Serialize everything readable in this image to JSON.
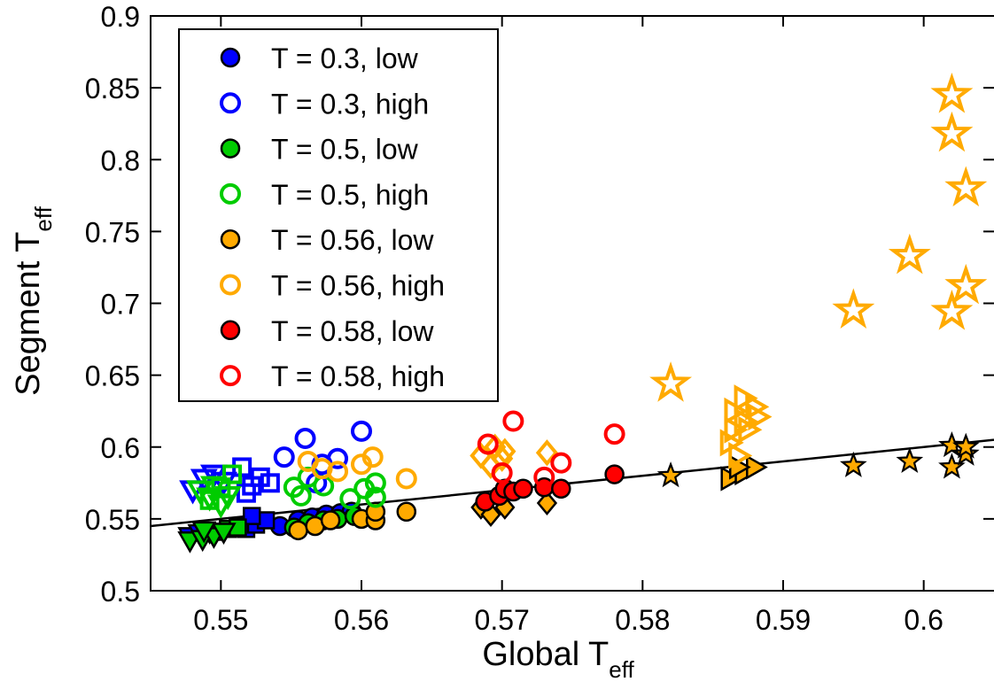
{
  "chart_data": {
    "type": "scatter",
    "xlabel": "Global T",
    "xlabel_sub": "eff",
    "ylabel": "Segment T",
    "ylabel_sub": "eff",
    "xlim": [
      0.545,
      0.605
    ],
    "ylim": [
      0.5,
      0.9
    ],
    "x_ticks": [
      0.55,
      0.56,
      0.57,
      0.58,
      0.59,
      0.6
    ],
    "x_tick_labels": [
      "0.55",
      "0.56",
      "0.57",
      "0.58",
      "0.59",
      "0.6"
    ],
    "y_ticks": [
      0.5,
      0.55,
      0.6,
      0.65,
      0.7,
      0.75,
      0.8,
      0.85,
      0.9
    ],
    "y_tick_labels": [
      "0.5",
      "0.55",
      "0.6",
      "0.65",
      "0.7",
      "0.75",
      "0.8",
      "0.85",
      "0.9"
    ],
    "grid": false,
    "legend_position": "top-left",
    "colors": {
      "T0.3": "#0000ff",
      "T0.5": "#00cc00",
      "T0.56": "#ffaa00",
      "T0.58": "#ff0000",
      "fit_line": "#000000"
    },
    "fit_line": {
      "x": [
        0.545,
        0.605
      ],
      "y": [
        0.545,
        0.605
      ]
    },
    "legend": [
      {
        "label": "T = 0.3, low",
        "color": "#0000ff",
        "filled": true
      },
      {
        "label": "T = 0.3, high",
        "color": "#0000ff",
        "filled": false
      },
      {
        "label": "T = 0.5, low",
        "color": "#00cc00",
        "filled": true
      },
      {
        "label": "T = 0.5, high",
        "color": "#00cc00",
        "filled": false
      },
      {
        "label": "T = 0.56, low",
        "color": "#ffaa00",
        "filled": true
      },
      {
        "label": "T = 0.56, high",
        "color": "#ffaa00",
        "filled": false
      },
      {
        "label": "T = 0.58, low",
        "color": "#ff0000",
        "filled": true
      },
      {
        "label": "T = 0.58, high",
        "color": "#ff0000",
        "filled": false
      }
    ],
    "series": [
      {
        "name": "T = 0.3, low",
        "color": "#0000ff",
        "filled": true,
        "points": [
          {
            "x": 0.5542,
            "y": 0.545,
            "m": "circle"
          },
          {
            "x": 0.5555,
            "y": 0.549,
            "m": "circle"
          },
          {
            "x": 0.5565,
            "y": 0.551,
            "m": "circle"
          },
          {
            "x": 0.5575,
            "y": 0.553,
            "m": "circle"
          },
          {
            "x": 0.5585,
            "y": 0.554,
            "m": "circle"
          },
          {
            "x": 0.5593,
            "y": 0.555,
            "m": "circle"
          },
          {
            "x": 0.5518,
            "y": 0.543,
            "m": "square"
          },
          {
            "x": 0.5525,
            "y": 0.546,
            "m": "square"
          },
          {
            "x": 0.5532,
            "y": 0.549,
            "m": "square"
          },
          {
            "x": 0.5512,
            "y": 0.545,
            "m": "square"
          },
          {
            "x": 0.5522,
            "y": 0.552,
            "m": "square"
          },
          {
            "x": 0.5478,
            "y": 0.538,
            "m": "tri-down"
          },
          {
            "x": 0.5485,
            "y": 0.54,
            "m": "tri-down"
          },
          {
            "x": 0.5492,
            "y": 0.541,
            "m": "tri-down"
          }
        ]
      },
      {
        "name": "T = 0.3, high",
        "color": "#0000ff",
        "filled": false,
        "points": [
          {
            "x": 0.5545,
            "y": 0.593,
            "m": "circle"
          },
          {
            "x": 0.556,
            "y": 0.606,
            "m": "circle"
          },
          {
            "x": 0.5572,
            "y": 0.588,
            "m": "circle"
          },
          {
            "x": 0.5583,
            "y": 0.592,
            "m": "circle"
          },
          {
            "x": 0.56,
            "y": 0.611,
            "m": "circle"
          },
          {
            "x": 0.5568,
            "y": 0.575,
            "m": "circle"
          },
          {
            "x": 0.5522,
            "y": 0.573,
            "m": "square"
          },
          {
            "x": 0.5515,
            "y": 0.586,
            "m": "square"
          },
          {
            "x": 0.5528,
            "y": 0.579,
            "m": "square"
          },
          {
            "x": 0.5535,
            "y": 0.575,
            "m": "square"
          },
          {
            "x": 0.5518,
            "y": 0.568,
            "m": "square"
          },
          {
            "x": 0.548,
            "y": 0.57,
            "m": "tri-down"
          },
          {
            "x": 0.5488,
            "y": 0.578,
            "m": "tri-down"
          },
          {
            "x": 0.5495,
            "y": 0.581,
            "m": "tri-down"
          },
          {
            "x": 0.5502,
            "y": 0.576,
            "m": "tri-down"
          }
        ]
      },
      {
        "name": "T = 0.5, low",
        "color": "#00cc00",
        "filled": true,
        "points": [
          {
            "x": 0.5552,
            "y": 0.544,
            "m": "circle"
          },
          {
            "x": 0.5562,
            "y": 0.547,
            "m": "circle"
          },
          {
            "x": 0.5573,
            "y": 0.549,
            "m": "circle"
          },
          {
            "x": 0.5583,
            "y": 0.55,
            "m": "circle"
          },
          {
            "x": 0.5595,
            "y": 0.552,
            "m": "circle"
          },
          {
            "x": 0.5495,
            "y": 0.541,
            "m": "square"
          },
          {
            "x": 0.5505,
            "y": 0.543,
            "m": "square"
          },
          {
            "x": 0.5512,
            "y": 0.544,
            "m": "square"
          },
          {
            "x": 0.5478,
            "y": 0.535,
            "m": "tri-down"
          },
          {
            "x": 0.5487,
            "y": 0.536,
            "m": "tri-down"
          },
          {
            "x": 0.5495,
            "y": 0.538,
            "m": "tri-down"
          },
          {
            "x": 0.5502,
            "y": 0.541,
            "m": "tri-down"
          },
          {
            "x": 0.5488,
            "y": 0.542,
            "m": "tri-down"
          }
        ]
      },
      {
        "name": "T = 0.5, high",
        "color": "#00cc00",
        "filled": false,
        "points": [
          {
            "x": 0.5552,
            "y": 0.572,
            "m": "circle"
          },
          {
            "x": 0.5562,
            "y": 0.579,
            "m": "circle"
          },
          {
            "x": 0.5557,
            "y": 0.566,
            "m": "circle"
          },
          {
            "x": 0.5573,
            "y": 0.573,
            "m": "circle"
          },
          {
            "x": 0.5592,
            "y": 0.564,
            "m": "circle"
          },
          {
            "x": 0.5602,
            "y": 0.571,
            "m": "circle"
          },
          {
            "x": 0.561,
            "y": 0.575,
            "m": "circle"
          },
          {
            "x": 0.561,
            "y": 0.565,
            "m": "circle"
          },
          {
            "x": 0.5508,
            "y": 0.581,
            "m": "square"
          },
          {
            "x": 0.55,
            "y": 0.572,
            "m": "square"
          },
          {
            "x": 0.5492,
            "y": 0.563,
            "m": "square"
          },
          {
            "x": 0.5485,
            "y": 0.57,
            "m": "tri-down"
          },
          {
            "x": 0.5492,
            "y": 0.565,
            "m": "tri-down"
          },
          {
            "x": 0.55,
            "y": 0.56,
            "m": "tri-down"
          },
          {
            "x": 0.5495,
            "y": 0.573,
            "m": "tri-down"
          },
          {
            "x": 0.5505,
            "y": 0.566,
            "m": "tri-down"
          }
        ]
      },
      {
        "name": "T = 0.56, low",
        "color": "#ffaa00",
        "filled": true,
        "points": [
          {
            "x": 0.5555,
            "y": 0.542,
            "m": "circle"
          },
          {
            "x": 0.5567,
            "y": 0.545,
            "m": "circle"
          },
          {
            "x": 0.5578,
            "y": 0.549,
            "m": "circle"
          },
          {
            "x": 0.56,
            "y": 0.55,
            "m": "circle"
          },
          {
            "x": 0.561,
            "y": 0.549,
            "m": "circle"
          },
          {
            "x": 0.561,
            "y": 0.555,
            "m": "circle"
          },
          {
            "x": 0.5632,
            "y": 0.555,
            "m": "circle"
          },
          {
            "x": 0.5685,
            "y": 0.558,
            "m": "diamond"
          },
          {
            "x": 0.5692,
            "y": 0.553,
            "m": "diamond"
          },
          {
            "x": 0.5702,
            "y": 0.558,
            "m": "diamond"
          },
          {
            "x": 0.5732,
            "y": 0.561,
            "m": "diamond"
          },
          {
            "x": 0.5862,
            "y": 0.578,
            "m": "tri-right"
          },
          {
            "x": 0.5872,
            "y": 0.582,
            "m": "tri-right"
          },
          {
            "x": 0.588,
            "y": 0.586,
            "m": "tri-right"
          },
          {
            "x": 0.5868,
            "y": 0.586,
            "m": "tri-right"
          },
          {
            "x": 0.582,
            "y": 0.58,
            "m": "star"
          },
          {
            "x": 0.595,
            "y": 0.587,
            "m": "star"
          },
          {
            "x": 0.599,
            "y": 0.59,
            "m": "star"
          },
          {
            "x": 0.602,
            "y": 0.586,
            "m": "star"
          },
          {
            "x": 0.602,
            "y": 0.601,
            "m": "star"
          },
          {
            "x": 0.603,
            "y": 0.595,
            "m": "star"
          },
          {
            "x": 0.603,
            "y": 0.6,
            "m": "star"
          }
        ]
      },
      {
        "name": "T = 0.56, high",
        "color": "#ffaa00",
        "filled": false,
        "points": [
          {
            "x": 0.5562,
            "y": 0.59,
            "m": "circle"
          },
          {
            "x": 0.5572,
            "y": 0.585,
            "m": "circle"
          },
          {
            "x": 0.5583,
            "y": 0.583,
            "m": "circle"
          },
          {
            "x": 0.56,
            "y": 0.588,
            "m": "circle"
          },
          {
            "x": 0.5608,
            "y": 0.593,
            "m": "circle"
          },
          {
            "x": 0.5632,
            "y": 0.578,
            "m": "circle"
          },
          {
            "x": 0.5685,
            "y": 0.594,
            "m": "diamond"
          },
          {
            "x": 0.5692,
            "y": 0.587,
            "m": "diamond"
          },
          {
            "x": 0.5695,
            "y": 0.6,
            "m": "diamond"
          },
          {
            "x": 0.57,
            "y": 0.592,
            "m": "diamond"
          },
          {
            "x": 0.5702,
            "y": 0.597,
            "m": "diamond"
          },
          {
            "x": 0.5732,
            "y": 0.596,
            "m": "diamond"
          },
          {
            "x": 0.5865,
            "y": 0.612,
            "m": "tri-right"
          },
          {
            "x": 0.5872,
            "y": 0.618,
            "m": "tri-right"
          },
          {
            "x": 0.5865,
            "y": 0.625,
            "m": "tri-right"
          },
          {
            "x": 0.588,
            "y": 0.628,
            "m": "tri-right"
          },
          {
            "x": 0.5862,
            "y": 0.603,
            "m": "tri-right"
          },
          {
            "x": 0.5875,
            "y": 0.612,
            "m": "tri-right"
          },
          {
            "x": 0.5882,
            "y": 0.621,
            "m": "tri-right"
          },
          {
            "x": 0.5872,
            "y": 0.634,
            "m": "tri-right"
          },
          {
            "x": 0.5868,
            "y": 0.594,
            "m": "tri-right"
          },
          {
            "x": 0.582,
            "y": 0.644,
            "m": "star"
          },
          {
            "x": 0.595,
            "y": 0.695,
            "m": "star"
          },
          {
            "x": 0.599,
            "y": 0.733,
            "m": "star"
          },
          {
            "x": 0.602,
            "y": 0.694,
            "m": "star"
          },
          {
            "x": 0.602,
            "y": 0.818,
            "m": "star"
          },
          {
            "x": 0.602,
            "y": 0.845,
            "m": "star"
          },
          {
            "x": 0.603,
            "y": 0.78,
            "m": "star"
          },
          {
            "x": 0.603,
            "y": 0.712,
            "m": "star"
          }
        ]
      },
      {
        "name": "T = 0.58, low",
        "color": "#ff0000",
        "filled": true,
        "points": [
          {
            "x": 0.5688,
            "y": 0.562,
            "m": "circle"
          },
          {
            "x": 0.5698,
            "y": 0.566,
            "m": "circle"
          },
          {
            "x": 0.5702,
            "y": 0.571,
            "m": "circle"
          },
          {
            "x": 0.5708,
            "y": 0.569,
            "m": "circle"
          },
          {
            "x": 0.5715,
            "y": 0.571,
            "m": "circle"
          },
          {
            "x": 0.573,
            "y": 0.572,
            "m": "circle"
          },
          {
            "x": 0.5742,
            "y": 0.571,
            "m": "circle"
          },
          {
            "x": 0.578,
            "y": 0.581,
            "m": "circle"
          }
        ]
      },
      {
        "name": "T = 0.58, high",
        "color": "#ff0000",
        "filled": false,
        "points": [
          {
            "x": 0.569,
            "y": 0.602,
            "m": "circle"
          },
          {
            "x": 0.57,
            "y": 0.582,
            "m": "circle"
          },
          {
            "x": 0.5708,
            "y": 0.618,
            "m": "circle"
          },
          {
            "x": 0.573,
            "y": 0.579,
            "m": "circle"
          },
          {
            "x": 0.5742,
            "y": 0.589,
            "m": "circle"
          },
          {
            "x": 0.578,
            "y": 0.609,
            "m": "circle"
          }
        ]
      }
    ]
  }
}
